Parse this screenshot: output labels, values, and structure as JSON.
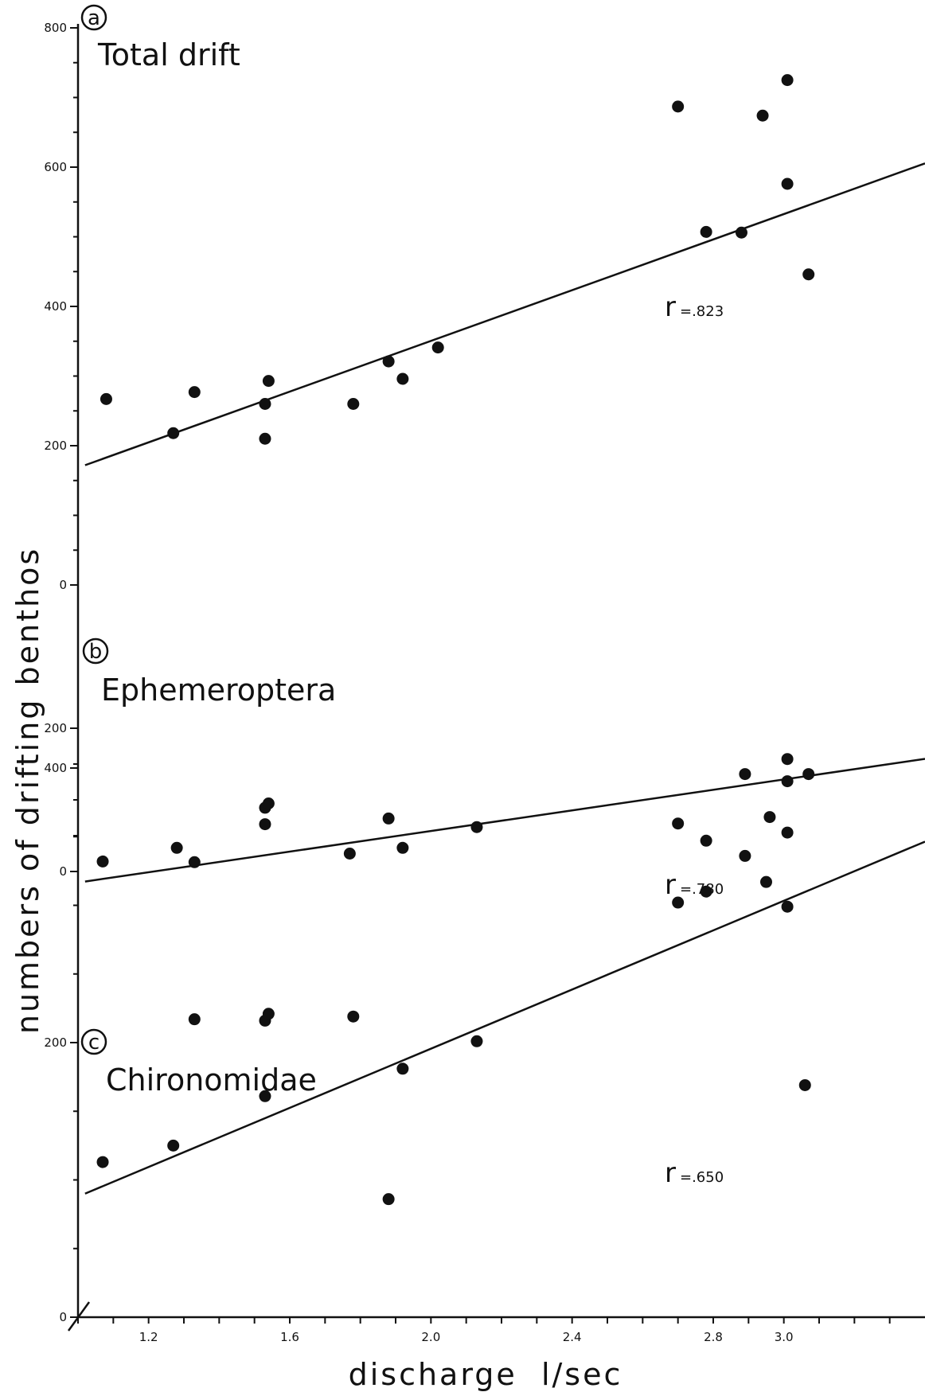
{
  "chart_data": {
    "type": "scatter",
    "xlabel": "discharge  l/sec",
    "ylabel": "numbers of drifting benthos",
    "x_ticks": [
      "1.2",
      "1.6",
      "2.0",
      "2.4",
      "2.8",
      "3.0"
    ],
    "x_tick_values": [
      1.2,
      1.6,
      2.0,
      2.4,
      2.8,
      3.0
    ],
    "xlim": [
      1.0,
      3.4
    ],
    "grid": false,
    "panels": [
      {
        "letter": "a",
        "title": "Total drift",
        "ylim": [
          0,
          800
        ],
        "y_ticks": [
          "800",
          "600",
          "400",
          "200",
          "0"
        ],
        "y_tick_values": [
          800,
          600,
          400,
          200,
          0
        ],
        "r_label": "r",
        "r_value": "=.823",
        "points": [
          [
            1.08,
            267
          ],
          [
            1.27,
            218
          ],
          [
            1.33,
            277
          ],
          [
            1.53,
            210
          ],
          [
            1.53,
            260
          ],
          [
            1.54,
            293
          ],
          [
            1.78,
            260
          ],
          [
            1.88,
            321
          ],
          [
            1.92,
            296
          ],
          [
            2.02,
            341
          ],
          [
            2.7,
            687
          ],
          [
            2.78,
            507
          ],
          [
            2.94,
            674
          ],
          [
            2.88,
            506
          ],
          [
            3.01,
            576
          ],
          [
            3.01,
            725
          ],
          [
            3.07,
            446
          ]
        ],
        "fit": [
          [
            1.02,
            172
          ],
          [
            3.48,
            620
          ]
        ]
      },
      {
        "letter": "b",
        "title": "Ephemeroptera",
        "ylim": [
          0,
          200
        ],
        "y_ticks": [
          "200",
          "0"
        ],
        "y_tick_values": [
          200,
          0
        ],
        "r_label": "r",
        "r_value": "=.780",
        "points": [
          [
            1.07,
            14
          ],
          [
            1.28,
            33
          ],
          [
            1.33,
            13
          ],
          [
            1.53,
            89
          ],
          [
            1.54,
            95
          ],
          [
            1.53,
            66
          ],
          [
            1.77,
            25
          ],
          [
            1.88,
            74
          ],
          [
            1.92,
            33
          ],
          [
            2.13,
            62
          ],
          [
            2.7,
            67
          ],
          [
            2.78,
            43
          ],
          [
            2.96,
            76
          ],
          [
            2.89,
            136
          ],
          [
            3.01,
            157
          ],
          [
            3.01,
            126
          ],
          [
            3.07,
            136
          ]
        ],
        "fit": [
          [
            1.02,
            -14
          ],
          [
            3.48,
            163
          ]
        ]
      },
      {
        "letter": "c",
        "title": "Chironomidae",
        "ylim": [
          0,
          400
        ],
        "y_ticks": [
          "400",
          "200",
          "0"
        ],
        "y_tick_values": [
          400,
          200,
          0
        ],
        "r_label": "r",
        "r_value": "=.650",
        "points": [
          [
            1.07,
            113
          ],
          [
            1.27,
            125
          ],
          [
            1.33,
            217
          ],
          [
            1.53,
            216
          ],
          [
            1.54,
            221
          ],
          [
            1.53,
            161
          ],
          [
            1.78,
            219
          ],
          [
            1.88,
            86
          ],
          [
            1.92,
            181
          ],
          [
            2.13,
            201
          ],
          [
            2.7,
            302
          ],
          [
            2.78,
            310
          ],
          [
            2.95,
            317
          ],
          [
            2.89,
            336
          ],
          [
            3.01,
            353
          ],
          [
            3.01,
            299
          ],
          [
            3.06,
            169
          ]
        ],
        "fit": [
          [
            1.02,
            90
          ],
          [
            3.48,
            355
          ]
        ]
      }
    ]
  }
}
